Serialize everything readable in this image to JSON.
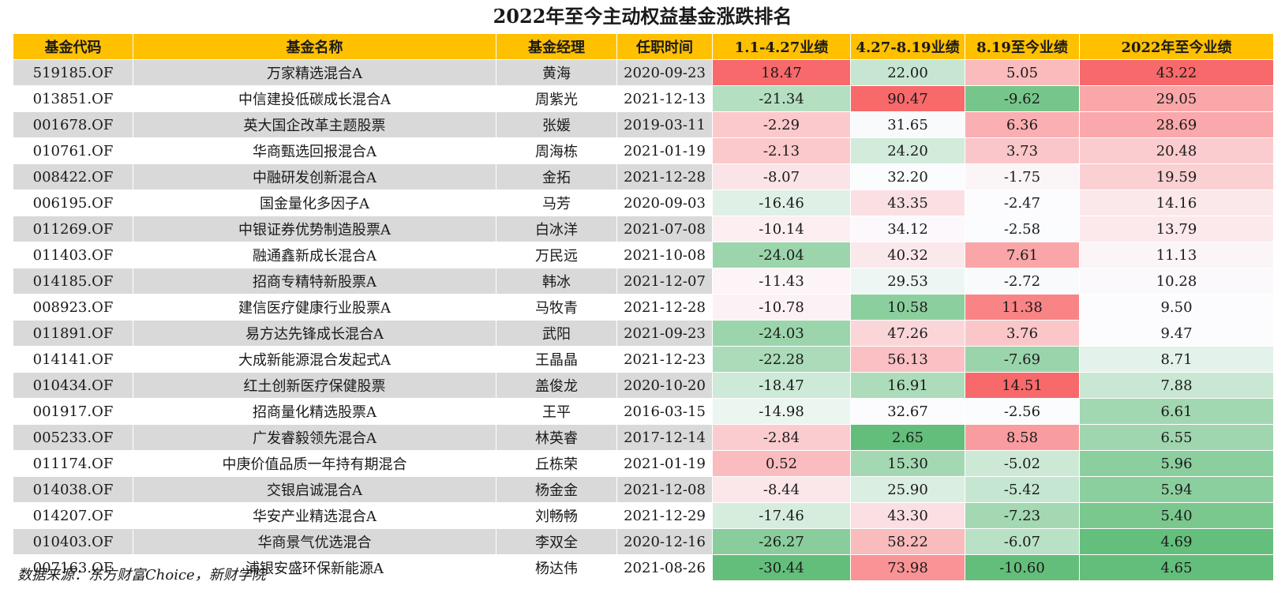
{
  "title": "2022年至今主动权益基金涨跌排名",
  "source": "数据来源：东方财富Choice，新财学院",
  "colors": {
    "header_bg": "#ffc000",
    "row_gray": "#d9d9d9",
    "positive_max": "#f8696b",
    "negative_max": "#63be7b",
    "neutral": "#fcfcff"
  },
  "chart_data": {
    "type": "table",
    "title": "2022年至今主动权益基金涨跌排名",
    "columns": [
      "基金代码",
      "基金名称",
      "基金经理",
      "任职时间",
      "1.1-4.27业绩",
      "4.27-8.19业绩",
      "8.19至今业绩",
      "2022年至今业绩"
    ],
    "rows": [
      [
        "519185.OF",
        "万家精选混合A",
        "黄海",
        "2020-09-23",
        "18.47",
        "22.00",
        "5.05",
        "43.22"
      ],
      [
        "013851.OF",
        "中信建投低碳成长混合A",
        "周紫光",
        "2021-12-13",
        "-21.34",
        "90.47",
        "-9.62",
        "29.05"
      ],
      [
        "001678.OF",
        "英大国企改革主题股票",
        "张媛",
        "2019-03-11",
        "-2.29",
        "31.65",
        "6.36",
        "28.69"
      ],
      [
        "010761.OF",
        "华商甄选回报混合A",
        "周海栋",
        "2021-01-19",
        "-2.13",
        "24.20",
        "3.73",
        "20.48"
      ],
      [
        "008422.OF",
        "中融研发创新混合A",
        "金拓",
        "2021-12-28",
        "-8.07",
        "32.20",
        "-1.75",
        "19.59"
      ],
      [
        "006195.OF",
        "国金量化多因子A",
        "马芳",
        "2020-09-03",
        "-16.46",
        "43.35",
        "-2.47",
        "14.16"
      ],
      [
        "011269.OF",
        "中银证券优势制造股票A",
        "白冰洋",
        "2021-07-08",
        "-10.14",
        "34.12",
        "-2.58",
        "13.79"
      ],
      [
        "011403.OF",
        "融通鑫新成长混合A",
        "万民远",
        "2021-10-08",
        "-24.04",
        "40.32",
        "7.61",
        "11.13"
      ],
      [
        "014185.OF",
        "招商专精特新股票A",
        "韩冰",
        "2021-12-07",
        "-11.43",
        "29.53",
        "-2.72",
        "10.28"
      ],
      [
        "008923.OF",
        "建信医疗健康行业股票A",
        "马牧青",
        "2021-12-28",
        "-10.78",
        "10.58",
        "11.38",
        "9.50"
      ],
      [
        "011891.OF",
        "易方达先锋成长混合A",
        "武阳",
        "2021-09-23",
        "-24.03",
        "47.26",
        "3.76",
        "9.47"
      ],
      [
        "014141.OF",
        "大成新能源混合发起式A",
        "王晶晶",
        "2021-12-23",
        "-22.28",
        "56.13",
        "-7.69",
        "8.71"
      ],
      [
        "010434.OF",
        "红土创新医疗保健股票",
        "盖俊龙",
        "2020-10-20",
        "-18.47",
        "16.91",
        "14.51",
        "7.88"
      ],
      [
        "001917.OF",
        "招商量化精选股票A",
        "王平",
        "2016-03-15",
        "-14.98",
        "32.67",
        "-2.56",
        "6.61"
      ],
      [
        "005233.OF",
        "广发睿毅领先混合A",
        "林英睿",
        "2017-12-14",
        "-2.84",
        "2.65",
        "8.58",
        "6.55"
      ],
      [
        "011174.OF",
        "中庚价值品质一年持有期混合",
        "丘栋荣",
        "2021-01-19",
        "0.52",
        "15.30",
        "-5.02",
        "5.96"
      ],
      [
        "014038.OF",
        "交银启诚混合A",
        "杨金金",
        "2021-12-08",
        "-8.44",
        "25.90",
        "-5.42",
        "5.94"
      ],
      [
        "014207.OF",
        "华安产业精选混合A",
        "刘畅畅",
        "2021-12-29",
        "-17.46",
        "43.30",
        "-7.23",
        "5.40"
      ],
      [
        "010403.OF",
        "华商景气优选混合",
        "李双全",
        "2020-12-16",
        "-26.27",
        "58.22",
        "-6.07",
        "4.69"
      ],
      [
        "007163.OF",
        "浦银安盛环保新能源A",
        "杨达伟",
        "2021-08-26",
        "-30.44",
        "73.98",
        "-10.60",
        "4.65"
      ]
    ],
    "heatmap_columns": [
      4,
      5,
      6,
      7
    ],
    "heatmap_scale": "per-column: red = highest, white = median, green = lowest"
  }
}
